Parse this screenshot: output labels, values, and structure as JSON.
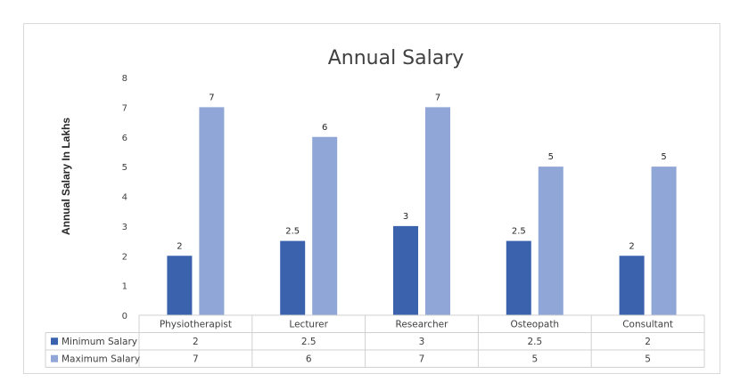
{
  "chart_data": {
    "type": "bar",
    "title": "Annual Salary",
    "ylabel": "Annual Salary In Lakhs",
    "xlabel": "",
    "ylim": [
      0,
      8
    ],
    "yticks": [
      "0",
      "1",
      "2",
      "3",
      "4",
      "5",
      "6",
      "7",
      "8"
    ],
    "categories": [
      "Physiotherapist",
      "Lecturer",
      "Researcher",
      "Osteopath",
      "Consultant"
    ],
    "series": [
      {
        "name": "Minimum Salary",
        "values": [
          2,
          2.5,
          3,
          2.5,
          2
        ],
        "labels": [
          "2",
          "2.5",
          "3",
          "2.5",
          "2"
        ],
        "color": "#3a62ad"
      },
      {
        "name": "Maximum Salary",
        "values": [
          7,
          6,
          7,
          5,
          5
        ],
        "labels": [
          "7",
          "6",
          "7",
          "5",
          "5"
        ],
        "color": "#90a6d6"
      }
    ],
    "grid": false,
    "legend": "data-table"
  }
}
